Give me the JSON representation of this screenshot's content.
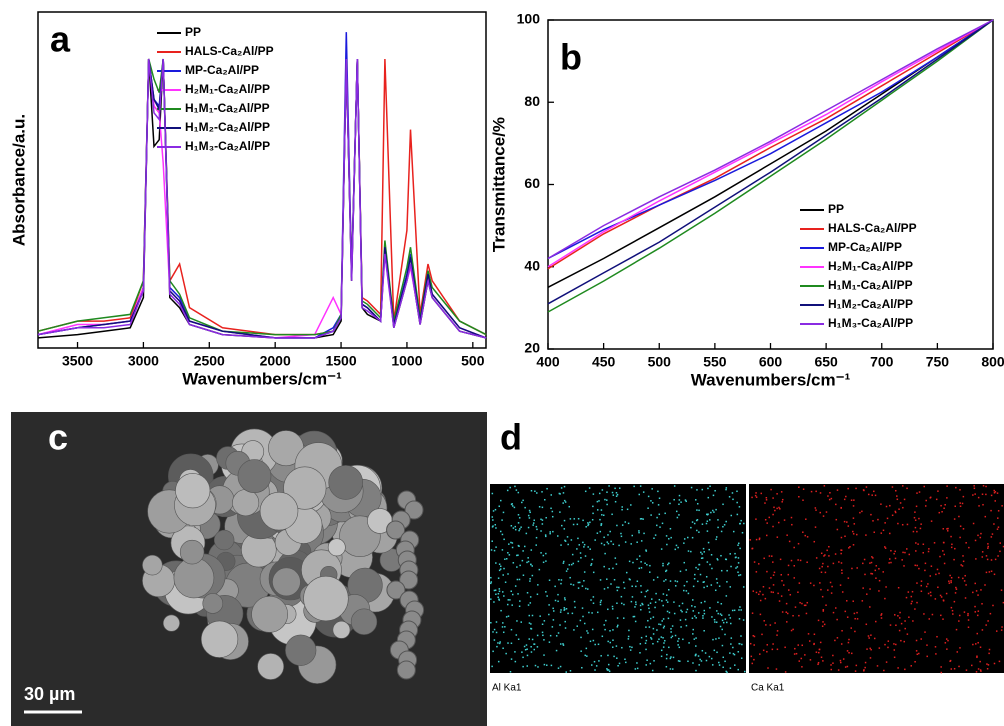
{
  "chart_data": [
    {
      "type": "line",
      "panel": "a",
      "xlabel": "Wavenumbers/cm⁻¹",
      "ylabel": "Absorbance/a.u.",
      "xlim": [
        3800,
        400
      ],
      "xticks": [
        3500,
        3000,
        2500,
        2000,
        1500,
        1000,
        500
      ],
      "ylim": [
        0,
        1
      ],
      "x": [
        3800,
        3500,
        3300,
        3100,
        3000,
        2960,
        2920,
        2880,
        2850,
        2800,
        2725,
        2650,
        2400,
        2000,
        1700,
        1560,
        1500,
        1460,
        1420,
        1377,
        1340,
        1300,
        1200,
        1167,
        1100,
        1000,
        973,
        900,
        840,
        808,
        600,
        400
      ],
      "series": [
        {
          "name": "PP",
          "color": "#000000",
          "values": [
            0.03,
            0.04,
            0.05,
            0.06,
            0.15,
            0.86,
            0.6,
            0.62,
            0.86,
            0.15,
            0.12,
            0.07,
            0.04,
            0.03,
            0.03,
            0.04,
            0.08,
            0.86,
            0.2,
            0.86,
            0.12,
            0.1,
            0.08,
            0.3,
            0.06,
            0.2,
            0.25,
            0.07,
            0.2,
            0.15,
            0.05,
            0.03
          ]
        },
        {
          "name": "HALS-Ca₂Al/PP",
          "color": "#e8221e",
          "values": [
            0.05,
            0.08,
            0.08,
            0.09,
            0.2,
            0.86,
            0.72,
            0.7,
            0.86,
            0.2,
            0.25,
            0.12,
            0.06,
            0.04,
            0.04,
            0.05,
            0.1,
            0.86,
            0.22,
            0.86,
            0.15,
            0.14,
            0.1,
            0.86,
            0.08,
            0.35,
            0.65,
            0.1,
            0.25,
            0.2,
            0.08,
            0.04
          ]
        },
        {
          "name": "MP-Ca₂Al/PP",
          "color": "#1a1adc",
          "values": [
            0.04,
            0.06,
            0.07,
            0.08,
            0.18,
            0.86,
            0.74,
            0.72,
            0.86,
            0.18,
            0.15,
            0.08,
            0.05,
            0.03,
            0.03,
            0.06,
            0.1,
            0.94,
            0.22,
            0.86,
            0.13,
            0.12,
            0.08,
            0.3,
            0.07,
            0.22,
            0.28,
            0.08,
            0.22,
            0.16,
            0.06,
            0.03
          ]
        },
        {
          "name": "H₂M₁-Ca₂Al/PP",
          "color": "#ff33ff",
          "values": [
            0.04,
            0.07,
            0.07,
            0.08,
            0.18,
            0.86,
            0.72,
            0.7,
            0.55,
            0.17,
            0.14,
            0.08,
            0.05,
            0.03,
            0.04,
            0.15,
            0.1,
            0.86,
            0.22,
            0.86,
            0.13,
            0.12,
            0.08,
            0.28,
            0.07,
            0.2,
            0.24,
            0.08,
            0.21,
            0.16,
            0.06,
            0.03
          ]
        },
        {
          "name": "H₁M₁-Ca₂Al/PP",
          "color": "#1f8a1f",
          "values": [
            0.05,
            0.08,
            0.09,
            0.1,
            0.2,
            0.86,
            0.8,
            0.76,
            0.86,
            0.2,
            0.16,
            0.09,
            0.05,
            0.04,
            0.04,
            0.05,
            0.1,
            0.86,
            0.22,
            0.86,
            0.14,
            0.13,
            0.09,
            0.32,
            0.08,
            0.24,
            0.3,
            0.09,
            0.23,
            0.18,
            0.08,
            0.04
          ]
        },
        {
          "name": "H₁M₂-Ca₂Al/PP",
          "color": "#10107a",
          "values": [
            0.04,
            0.06,
            0.07,
            0.08,
            0.17,
            0.86,
            0.74,
            0.71,
            0.86,
            0.17,
            0.14,
            0.08,
            0.05,
            0.03,
            0.03,
            0.05,
            0.09,
            0.86,
            0.21,
            0.86,
            0.13,
            0.12,
            0.08,
            0.3,
            0.07,
            0.21,
            0.27,
            0.08,
            0.22,
            0.16,
            0.06,
            0.03
          ]
        },
        {
          "name": "H₁M₃-Ca₂Al/PP",
          "color": "#8a2be2",
          "values": [
            0.04,
            0.06,
            0.06,
            0.07,
            0.17,
            0.86,
            0.7,
            0.68,
            0.86,
            0.16,
            0.13,
            0.07,
            0.04,
            0.03,
            0.03,
            0.05,
            0.09,
            0.86,
            0.2,
            0.86,
            0.12,
            0.11,
            0.08,
            0.28,
            0.06,
            0.2,
            0.25,
            0.07,
            0.2,
            0.15,
            0.05,
            0.03
          ]
        }
      ]
    },
    {
      "type": "line",
      "panel": "b",
      "xlabel": "Wavenumbers/cm⁻¹",
      "ylabel": "Transmittance/%",
      "xlim": [
        400,
        800
      ],
      "xticks": [
        400,
        450,
        500,
        550,
        600,
        650,
        700,
        750,
        800
      ],
      "ylim": [
        20,
        100
      ],
      "yticks": [
        20,
        40,
        60,
        80,
        100
      ],
      "x": [
        400,
        450,
        500,
        550,
        600,
        650,
        700,
        750,
        800
      ],
      "series": [
        {
          "name": "PP",
          "color": "#000000",
          "values": [
            35,
            42,
            49.5,
            57,
            65,
            73,
            82,
            91,
            100
          ]
        },
        {
          "name": "HALS-Ca₂Al/PP",
          "color": "#e8221e",
          "values": [
            39.5,
            48,
            55,
            61.5,
            69,
            76,
            84,
            92,
            100
          ]
        },
        {
          "name": "MP-Ca₂Al/PP",
          "color": "#1a1adc",
          "values": [
            42,
            49,
            55,
            61,
            67.5,
            75,
            82.5,
            91,
            100
          ]
        },
        {
          "name": "H₂M₁-Ca₂Al/PP",
          "color": "#ff33ff",
          "values": [
            40,
            48.5,
            56,
            63,
            70,
            77,
            85,
            92.5,
            100
          ]
        },
        {
          "name": "H₁M₁-Ca₂Al/PP",
          "color": "#1f8a1f",
          "values": [
            29,
            36.5,
            44.5,
            53,
            62,
            71,
            80.5,
            90,
            100
          ]
        },
        {
          "name": "H₁M₂-Ca₂Al/PP",
          "color": "#10107a",
          "values": [
            31,
            38.5,
            46,
            54.5,
            63,
            72,
            81,
            90.5,
            100
          ]
        },
        {
          "name": "H₁M₃-Ca₂Al/PP",
          "color": "#8a2be2",
          "values": [
            42,
            50,
            57,
            63.5,
            70.5,
            78,
            85.5,
            93,
            100
          ]
        }
      ]
    }
  ],
  "panel_c": {
    "label": "c",
    "scale_bar": "30 µm"
  },
  "panel_d": {
    "label": "d",
    "maps": [
      "Al Ka1",
      "Ca Ka1"
    ]
  }
}
